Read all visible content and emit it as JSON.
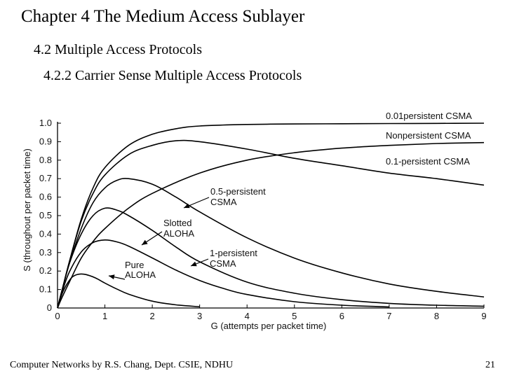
{
  "slide": {
    "title": "Chapter 4 The Medium Access Sublayer",
    "subtitle1": "4.2 Multiple Access Protocols",
    "subtitle2": "4.2.2 Carrier Sense Multiple Access Protocols",
    "footer_left": "Computer Networks by R.S. Chang, Dept. CSIE, NDHU",
    "page_number": "21"
  },
  "chart_data": {
    "type": "line",
    "xlabel": "G (attempts per packet time)",
    "ylabel": "S (throughout per packet time)",
    "xlim": [
      0,
      9
    ],
    "ylim": [
      0,
      1.0
    ],
    "x_ticks": [
      "0",
      "1",
      "2",
      "3",
      "4",
      "5",
      "6",
      "7",
      "8",
      "9"
    ],
    "y_ticks": [
      "0",
      "0.1",
      "0.2",
      "0.3",
      "0.4",
      "0.5",
      "0.6",
      "0.7",
      "0.8",
      "0.9",
      "1.0"
    ],
    "grid": false,
    "line_color": "#000000",
    "series": [
      {
        "id": "pure-aloha",
        "label": [
          "Pure",
          "ALOHA"
        ],
        "x": [
          0,
          0.1,
          0.2,
          0.3,
          0.4,
          0.5,
          0.6,
          0.8,
          1.0,
          1.25,
          1.5,
          2.0,
          2.5,
          3.0
        ],
        "y": [
          0,
          0.08,
          0.13,
          0.165,
          0.18,
          0.184,
          0.181,
          0.163,
          0.135,
          0.103,
          0.075,
          0.037,
          0.017,
          0.007
        ]
      },
      {
        "id": "slotted-aloha",
        "label": [
          "Slotted",
          "ALOHA"
        ],
        "x": [
          0,
          0.1,
          0.25,
          0.5,
          0.75,
          1.0,
          1.25,
          1.5,
          2.0,
          2.5,
          3.0,
          3.5,
          4.0,
          5.0,
          6.0,
          7.0
        ],
        "y": [
          0,
          0.09,
          0.195,
          0.303,
          0.354,
          0.368,
          0.358,
          0.335,
          0.271,
          0.205,
          0.149,
          0.106,
          0.073,
          0.034,
          0.015,
          0.006
        ]
      },
      {
        "id": "1-persistent",
        "label": [
          "1-persistent",
          "CSMA"
        ],
        "x": [
          0,
          0.1,
          0.25,
          0.5,
          0.75,
          1.0,
          1.25,
          1.5,
          2.0,
          2.5,
          3.0,
          4.0,
          5.0,
          6.0,
          7.0,
          8.0,
          9.0
        ],
        "y": [
          0,
          0.1,
          0.24,
          0.4,
          0.5,
          0.54,
          0.53,
          0.5,
          0.42,
          0.33,
          0.25,
          0.14,
          0.08,
          0.045,
          0.025,
          0.015,
          0.01
        ]
      },
      {
        "id": "0.5-persistent",
        "label": [
          "0.5-persistent",
          "CSMA"
        ],
        "x": [
          0,
          0.1,
          0.25,
          0.5,
          0.75,
          1.0,
          1.25,
          1.5,
          2.0,
          2.5,
          3.0,
          4.0,
          5.0,
          6.0,
          7.0,
          8.0,
          9.0
        ],
        "y": [
          0,
          0.1,
          0.24,
          0.43,
          0.57,
          0.65,
          0.69,
          0.7,
          0.67,
          0.6,
          0.52,
          0.38,
          0.27,
          0.19,
          0.13,
          0.09,
          0.06
        ]
      },
      {
        "id": "nonpersistent",
        "label": [
          "Nonpersistent CSMA"
        ],
        "x": [
          0,
          0.1,
          0.25,
          0.5,
          0.75,
          1.0,
          1.5,
          2.0,
          2.5,
          3.0,
          4.0,
          5.0,
          6.0,
          7.0,
          8.0,
          9.0
        ],
        "y": [
          0,
          0.1,
          0.25,
          0.47,
          0.62,
          0.72,
          0.83,
          0.88,
          0.905,
          0.9,
          0.86,
          0.81,
          0.77,
          0.73,
          0.7,
          0.665
        ]
      },
      {
        "id": "0.1-persistent",
        "label": [
          "0.1-persistent CSMA"
        ],
        "x": [
          0,
          0.1,
          0.25,
          0.5,
          0.75,
          1.0,
          1.5,
          2.0,
          3.0,
          4.0,
          5.0,
          6.0,
          7.0,
          8.0,
          9.0
        ],
        "y": [
          0,
          0.06,
          0.14,
          0.27,
          0.36,
          0.43,
          0.54,
          0.62,
          0.73,
          0.8,
          0.84,
          0.865,
          0.88,
          0.89,
          0.895
        ]
      },
      {
        "id": "0.01-persistent",
        "label": [
          "0.01persistent CSMA"
        ],
        "x": [
          0,
          0.1,
          0.25,
          0.5,
          0.75,
          1.0,
          1.5,
          2.0,
          2.5,
          3.0,
          4.0,
          5.0,
          6.0,
          7.0,
          8.0,
          9.0
        ],
        "y": [
          0,
          0.1,
          0.25,
          0.48,
          0.65,
          0.76,
          0.88,
          0.94,
          0.97,
          0.985,
          0.993,
          0.996,
          0.997,
          0.998,
          0.999,
          1.0
        ]
      }
    ]
  }
}
